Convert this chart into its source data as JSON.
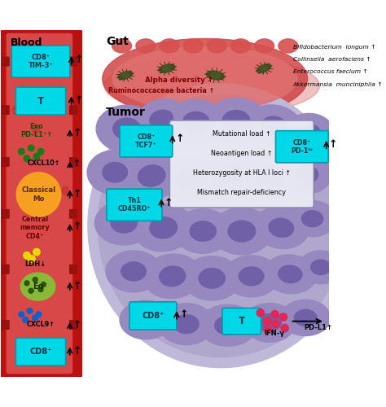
{
  "blood_color_outer": "#cc1515",
  "blood_color_inner": "#e05050",
  "gut_color_outer": "#cc4040",
  "gut_color_inner": "#e87070",
  "tumor_color_outer": "#b0a8cc",
  "tumor_color_cell": "#9888c0",
  "tumor_nucleus": "#7060a8",
  "cyan_color": "#00d8e8",
  "cyan_edge": "#009aaa",
  "orange_color": "#f5a020",
  "green_eo_color": "#8ab838",
  "gut_bacteria_list": [
    "Bifidobacterium  longum ↑",
    "Collinsella  aerofaciens ↑",
    "Enterococcus faecium ↑",
    "Akkermansia  munciniphila ↑"
  ],
  "tumor_box_text": [
    "Mutational load ↑",
    "Neoantigen load ↑",
    "Heterozygosity at HLA I loci ↑",
    "Mismatch repair-deficiency"
  ]
}
